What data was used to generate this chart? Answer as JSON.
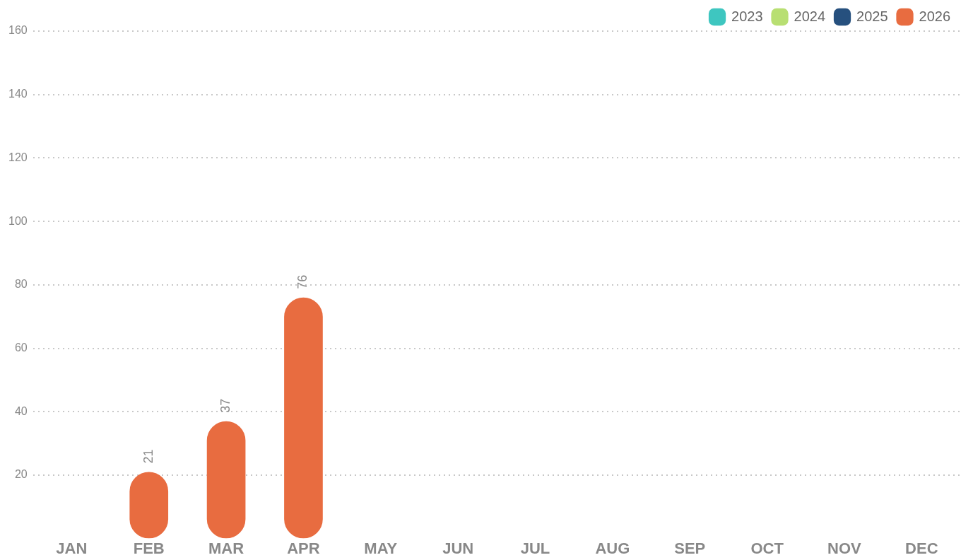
{
  "chart_data": {
    "type": "bar",
    "categories": [
      "JAN",
      "FEB",
      "MAR",
      "APR",
      "MAY",
      "JUN",
      "JUL",
      "AUG",
      "SEP",
      "OCT",
      "NOV",
      "DEC"
    ],
    "series": [
      {
        "name": "2023",
        "color": "#3ec6c0",
        "values": [
          null,
          null,
          null,
          null,
          null,
          null,
          null,
          null,
          null,
          null,
          null,
          null
        ]
      },
      {
        "name": "2024",
        "color": "#b8df72",
        "values": [
          null,
          null,
          null,
          null,
          null,
          null,
          null,
          null,
          null,
          null,
          null,
          null
        ]
      },
      {
        "name": "2025",
        "color": "#26507e",
        "values": [
          null,
          null,
          null,
          null,
          null,
          null,
          null,
          null,
          null,
          null,
          null,
          null
        ]
      },
      {
        "name": "2026",
        "color": "#e86c40",
        "values": [
          null,
          21,
          37,
          76,
          null,
          null,
          null,
          null,
          null,
          null,
          null,
          null
        ]
      }
    ],
    "ylim": [
      0,
      160
    ],
    "yticks": [
      20,
      40,
      60,
      80,
      100,
      120,
      140,
      160
    ],
    "grid": "y",
    "legend": "top right",
    "data_labels": true
  }
}
